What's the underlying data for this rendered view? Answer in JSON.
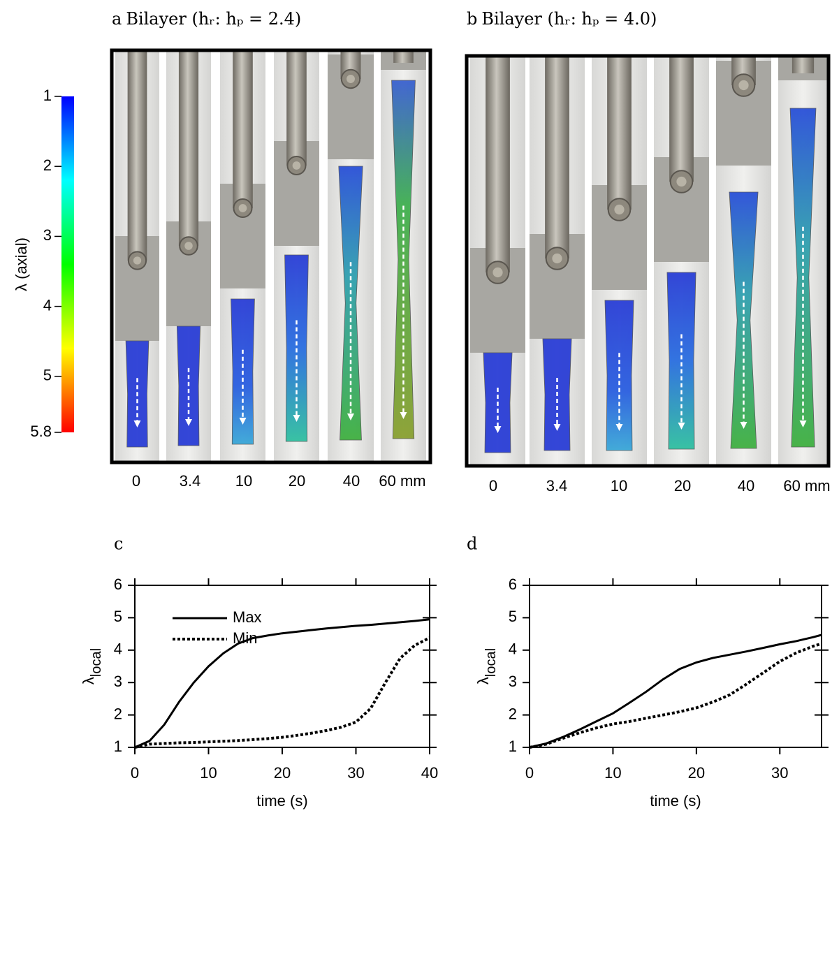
{
  "panels": [
    {
      "label": "a",
      "title": "Bilayer (hᵣ: hₚ = 2.4)",
      "strain_labels": [
        "0",
        "3.4",
        "10",
        "20",
        "40",
        "60 mm"
      ]
    },
    {
      "label": "b",
      "title": "Bilayer (hᵣ: hₚ = 4.0)",
      "strain_labels": [
        "0",
        "3.4",
        "10",
        "20",
        "40",
        "60 mm"
      ]
    }
  ],
  "colorbar": {
    "label": "λ (axial)",
    "lim": [
      1,
      5.8
    ],
    "ticks": [
      1,
      2,
      3,
      4,
      5,
      5.8
    ]
  },
  "chart_data": [
    {
      "type": "line",
      "label": "c",
      "xlabel": "time (s)",
      "ylabel": "λ",
      "ylabel_sub": "local",
      "x": [
        0,
        2,
        4,
        6,
        8,
        10,
        12,
        14,
        16,
        18,
        20,
        22,
        24,
        26,
        28,
        30,
        32,
        34,
        36,
        38,
        40
      ],
      "series": [
        {
          "name": "Max",
          "color": "#000000",
          "linestyle": "solid",
          "values": [
            1.0,
            1.2,
            1.7,
            2.4,
            3.0,
            3.5,
            3.9,
            4.2,
            4.37,
            4.45,
            4.52,
            4.57,
            4.62,
            4.67,
            4.71,
            4.75,
            4.78,
            4.82,
            4.86,
            4.9,
            4.95
          ]
        },
        {
          "name": "Min",
          "color": "#000000",
          "linestyle": "dotted",
          "values": [
            1.0,
            1.1,
            1.12,
            1.14,
            1.15,
            1.17,
            1.19,
            1.21,
            1.24,
            1.27,
            1.31,
            1.37,
            1.44,
            1.52,
            1.62,
            1.78,
            2.2,
            3.0,
            3.75,
            4.15,
            4.38
          ]
        }
      ],
      "xlim": [
        0,
        40
      ],
      "xticks": [
        0,
        10,
        20,
        30,
        40
      ],
      "ylim": [
        1,
        6
      ],
      "yticks": [
        1,
        2,
        3,
        4,
        5,
        6
      ],
      "legend": "upper left"
    },
    {
      "type": "line",
      "label": "d",
      "xlabel": "time (s)",
      "ylabel": "λ",
      "ylabel_sub": "local",
      "x": [
        0,
        2,
        4,
        6,
        8,
        10,
        12,
        14,
        16,
        18,
        20,
        22,
        24,
        26,
        28,
        30,
        32,
        34,
        35
      ],
      "series": [
        {
          "color": "#000000",
          "linestyle": "solid",
          "values": [
            1.0,
            1.12,
            1.32,
            1.55,
            1.8,
            2.05,
            2.38,
            2.72,
            3.1,
            3.42,
            3.62,
            3.76,
            3.86,
            3.96,
            4.07,
            4.18,
            4.28,
            4.4,
            4.47
          ]
        },
        {
          "color": "#000000",
          "linestyle": "dotted",
          "values": [
            1.0,
            1.1,
            1.28,
            1.45,
            1.6,
            1.72,
            1.8,
            1.9,
            2.0,
            2.1,
            2.22,
            2.4,
            2.62,
            2.95,
            3.3,
            3.65,
            3.92,
            4.12,
            4.2
          ]
        }
      ],
      "xlim": [
        0,
        35
      ],
      "xticks": [
        0,
        10,
        20,
        30
      ],
      "ylim": [
        1,
        6
      ],
      "yticks": [
        1,
        2,
        3,
        4,
        5,
        6
      ]
    }
  ]
}
